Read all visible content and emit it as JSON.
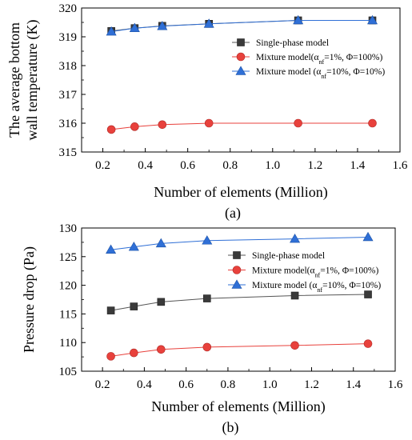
{
  "chart_data": [
    {
      "type": "line",
      "panel_label": "(a)",
      "xlabel": "Number of elements (Million)",
      "ylabel_lines": [
        "The average bottom",
        "wall temperature (K)"
      ],
      "xlim": [
        0.1,
        1.6
      ],
      "ylim": [
        315,
        320
      ],
      "xticks": [
        0.2,
        0.4,
        0.6,
        0.8,
        1.0,
        1.2,
        1.4,
        1.6
      ],
      "yticks": [
        315,
        316,
        317,
        318,
        319,
        320
      ],
      "x": [
        0.24,
        0.35,
        0.48,
        0.7,
        1.12,
        1.47
      ],
      "legend_position": "center-right",
      "series": [
        {
          "name": "Single-phase model",
          "legend_text": "Single-phase model",
          "marker": "square",
          "color": "#3a3a3a",
          "line_color": "#555555",
          "values": [
            319.2,
            319.3,
            319.38,
            319.45,
            319.57,
            319.57
          ]
        },
        {
          "name": "Mixture model(αnf=1%, Φ=100%)",
          "legend_text": "Mixture model(α",
          "legend_sub": "nf",
          "legend_tail": "=1%, Φ=100%)",
          "marker": "circle",
          "color": "#e8413c",
          "line_color": "#e8413c",
          "values": [
            315.78,
            315.88,
            315.95,
            316.0,
            316.0,
            316.0
          ]
        },
        {
          "name": "Mixture model (αnf=10%, Φ=10%)",
          "legend_text": "Mixture model (α",
          "legend_sub": "nf",
          "legend_tail": "=10%, Φ=10%)",
          "marker": "triangle",
          "color": "#2f6fd6",
          "line_color": "#2f6fd6",
          "values": [
            319.18,
            319.3,
            319.37,
            319.45,
            319.57,
            319.57
          ]
        }
      ]
    },
    {
      "type": "line",
      "panel_label": "(b)",
      "xlabel": "Number of elements (Million)",
      "ylabel_lines": [
        "Pressure drop (Pa)"
      ],
      "xlim": [
        0.1,
        1.6
      ],
      "ylim": [
        105,
        130
      ],
      "xticks": [
        0.2,
        0.4,
        0.6,
        0.8,
        1.0,
        1.2,
        1.4,
        1.6
      ],
      "yticks": [
        105,
        110,
        115,
        120,
        125,
        130
      ],
      "x": [
        0.24,
        0.35,
        0.48,
        0.7,
        1.12,
        1.47
      ],
      "legend_position": "center-right",
      "series": [
        {
          "name": "Single-phase model",
          "legend_text": "Single-phase model",
          "marker": "square",
          "color": "#3a3a3a",
          "line_color": "#555555",
          "values": [
            115.6,
            116.3,
            117.1,
            117.7,
            118.2,
            118.4
          ]
        },
        {
          "name": "Mixture model(αnf=1%, Φ=100%)",
          "legend_text": "Mixture model(α",
          "legend_sub": "nf",
          "legend_tail": "=1%, Φ=100%)",
          "marker": "circle",
          "color": "#e8413c",
          "line_color": "#e8413c",
          "values": [
            107.6,
            108.2,
            108.8,
            109.2,
            109.5,
            109.8
          ]
        },
        {
          "name": "Mixture model (αnf=10%, Φ=10%)",
          "legend_text": "Mixture model (α",
          "legend_sub": "nf",
          "legend_tail": "=10%, Φ=10%)",
          "marker": "triangle",
          "color": "#2f6fd6",
          "line_color": "#2f6fd6",
          "values": [
            126.2,
            126.7,
            127.3,
            127.8,
            128.1,
            128.4
          ]
        }
      ]
    }
  ]
}
